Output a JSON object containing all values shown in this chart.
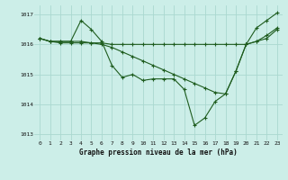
{
  "title": "Graphe pression niveau de la mer (hPa)",
  "bg_color": "#cceee8",
  "grid_color": "#aad8d0",
  "line_color": "#1e5c1e",
  "xlim": [
    -0.5,
    23.5
  ],
  "ylim": [
    1012.8,
    1017.3
  ],
  "yticks": [
    1013,
    1014,
    1015,
    1016,
    1017
  ],
  "xticks": [
    0,
    1,
    2,
    3,
    4,
    5,
    6,
    7,
    8,
    9,
    10,
    11,
    12,
    13,
    14,
    15,
    16,
    17,
    18,
    19,
    20,
    21,
    22,
    23
  ],
  "series": [
    [
      1016.2,
      1016.1,
      1016.1,
      1016.1,
      1016.8,
      1016.5,
      1016.1,
      1015.3,
      1014.9,
      1015.0,
      1014.8,
      1014.85,
      1014.85,
      1014.85,
      1014.5,
      1013.3,
      1013.55,
      1014.1,
      1014.35,
      1015.1,
      1016.0,
      1016.55,
      1016.8,
      1017.05
    ],
    [
      1016.2,
      1016.1,
      1016.1,
      1016.1,
      1016.1,
      1016.05,
      1016.0,
      1015.9,
      1015.75,
      1015.6,
      1015.45,
      1015.3,
      1015.15,
      1015.0,
      1014.85,
      1014.7,
      1014.55,
      1014.4,
      1014.35,
      1015.1,
      1016.0,
      1016.1,
      1016.3,
      1016.55
    ],
    [
      1016.2,
      1016.1,
      1016.05,
      1016.05,
      1016.05,
      1016.05,
      1016.05,
      1016.0,
      1016.0,
      1016.0,
      1016.0,
      1016.0,
      1016.0,
      1016.0,
      1016.0,
      1016.0,
      1016.0,
      1016.0,
      1016.0,
      1016.0,
      1016.0,
      1016.1,
      1016.2,
      1016.5
    ]
  ]
}
